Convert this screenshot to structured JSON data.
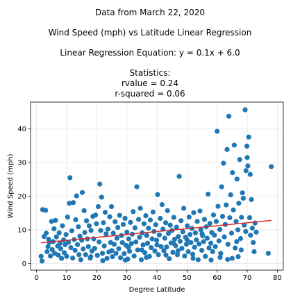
{
  "chart_data": {
    "type": "scatter",
    "title_lines": [
      "Data from March 22, 2020",
      "Wind Speed (mph) vs Latitude Linear Regression",
      "Linear Regression Equation: y = 0.1x + 6.0",
      "Statistics:",
      "rvalue = 0.24",
      "r-squared = 0.06"
    ],
    "xlabel": "Degree Latitude",
    "ylabel": "Wind Speed (mph)",
    "xlim": [
      -2,
      82
    ],
    "ylim": [
      -2,
      48
    ],
    "xticks": [
      0,
      10,
      20,
      30,
      40,
      50,
      60,
      70,
      80
    ],
    "yticks": [
      0,
      10,
      20,
      30,
      40
    ],
    "grid": true,
    "point_color": "#1f77b4",
    "line_color": "#d62728",
    "regression": {
      "slope": 0.087,
      "intercept": 6.0,
      "x_range": [
        1.5,
        78
      ]
    },
    "points": [
      [
        1.5,
        2.1
      ],
      [
        1.8,
        0.7
      ],
      [
        2.0,
        16.0
      ],
      [
        2.5,
        8.0
      ],
      [
        3.0,
        15.8
      ],
      [
        3.2,
        9.0
      ],
      [
        3.5,
        3.5
      ],
      [
        3.8,
        5.0
      ],
      [
        4.0,
        7.2
      ],
      [
        4.3,
        6.3
      ],
      [
        4.6,
        2.2
      ],
      [
        5.0,
        12.5
      ],
      [
        5.2,
        4.1
      ],
      [
        5.5,
        6.5
      ],
      [
        5.8,
        10.3
      ],
      [
        6.0,
        3.0
      ],
      [
        6.3,
        12.8
      ],
      [
        6.6,
        7.9
      ],
      [
        7.0,
        5.2
      ],
      [
        7.2,
        2.5
      ],
      [
        7.5,
        9.1
      ],
      [
        7.8,
        6.0
      ],
      [
        8.0,
        4.4
      ],
      [
        8.3,
        1.5
      ],
      [
        8.6,
        11.2
      ],
      [
        9.0,
        7.0
      ],
      [
        9.2,
        3.2
      ],
      [
        9.5,
        5.6
      ],
      [
        9.8,
        8.6
      ],
      [
        10.0,
        2.1
      ],
      [
        10.3,
        13.8
      ],
      [
        10.6,
        6.3
      ],
      [
        10.9,
        17.9
      ],
      [
        11.1,
        25.5
      ],
      [
        11.4,
        4.7
      ],
      [
        11.7,
        9.7
      ],
      [
        12.0,
        1.6
      ],
      [
        12.2,
        18.1
      ],
      [
        12.5,
        7.1
      ],
      [
        12.8,
        3.9
      ],
      [
        13.0,
        13.0
      ],
      [
        13.3,
        20.1
      ],
      [
        13.6,
        5.6
      ],
      [
        13.9,
        10.9
      ],
      [
        14.1,
        2.6
      ],
      [
        14.4,
        8.1
      ],
      [
        14.7,
        1.1
      ],
      [
        15.0,
        6.9
      ],
      [
        15.2,
        21.1
      ],
      [
        15.5,
        4.3
      ],
      [
        15.8,
        15.7
      ],
      [
        16.0,
        9.2
      ],
      [
        16.3,
        2.6
      ],
      [
        16.6,
        12.7
      ],
      [
        16.9,
        7.3
      ],
      [
        17.2,
        5.0
      ],
      [
        17.5,
        11.2
      ],
      [
        17.8,
        1.6
      ],
      [
        18.1,
        9.8
      ],
      [
        18.4,
        3.7
      ],
      [
        18.7,
        14.0
      ],
      [
        19.0,
        7.3
      ],
      [
        19.3,
        4.5
      ],
      [
        19.6,
        14.4
      ],
      [
        19.9,
        11.8
      ],
      [
        20.2,
        2.4
      ],
      [
        20.5,
        16.9
      ],
      [
        20.8,
        6.4
      ],
      [
        21.0,
        23.6
      ],
      [
        21.3,
        9.8
      ],
      [
        21.6,
        19.7
      ],
      [
        21.9,
        3.0
      ],
      [
        22.2,
        12.1
      ],
      [
        22.5,
        5.2
      ],
      [
        22.8,
        15.2
      ],
      [
        23.1,
        8.8
      ],
      [
        23.4,
        1.5
      ],
      [
        23.7,
        10.2
      ],
      [
        24.0,
        3.4
      ],
      [
        24.3,
        13.9
      ],
      [
        24.6,
        6.2
      ],
      [
        24.9,
        16.9
      ],
      [
        25.2,
        2.0
      ],
      [
        25.5,
        9.0
      ],
      [
        25.8,
        5.7
      ],
      [
        26.1,
        12.4
      ],
      [
        26.4,
        3.0
      ],
      [
        26.7,
        7.5
      ],
      [
        27.0,
        10.7
      ],
      [
        27.3,
        4.4
      ],
      [
        27.6,
        14.3
      ],
      [
        27.9,
        1.7
      ],
      [
        28.2,
        8.3
      ],
      [
        28.5,
        6.2
      ],
      [
        28.8,
        11.6
      ],
      [
        29.1,
        2.9
      ],
      [
        29.4,
        13.4
      ],
      [
        29.7,
        5.4
      ],
      [
        30.0,
        9.3
      ],
      [
        30.3,
        1.3
      ],
      [
        30.6,
        7.3
      ],
      [
        30.9,
        3.6
      ],
      [
        31.2,
        12.2
      ],
      [
        31.5,
        5.9
      ],
      [
        31.8,
        8.7
      ],
      [
        32.1,
        15.4
      ],
      [
        32.4,
        2.2
      ],
      [
        32.7,
        10.6
      ],
      [
        33.0,
        6.4
      ],
      [
        33.3,
        22.8
      ],
      [
        33.6,
        4.0
      ],
      [
        33.9,
        13.1
      ],
      [
        34.2,
        7.8
      ],
      [
        34.5,
        16.4
      ],
      [
        34.8,
        1.1
      ],
      [
        35.1,
        9.1
      ],
      [
        35.4,
        5.5
      ],
      [
        35.7,
        11.8
      ],
      [
        36.0,
        3.2
      ],
      [
        36.3,
        14.2
      ],
      [
        36.6,
        8.3
      ],
      [
        36.9,
        6.0
      ],
      [
        37.2,
        10.5
      ],
      [
        37.5,
        2.1
      ],
      [
        37.8,
        12.9
      ],
      [
        38.1,
        4.7
      ],
      [
        38.4,
        7.3
      ],
      [
        38.7,
        15.3
      ],
      [
        39.0,
        9.5
      ],
      [
        39.3,
        3.7
      ],
      [
        39.6,
        11.5
      ],
      [
        39.9,
        6.9
      ],
      [
        40.2,
        20.5
      ],
      [
        40.5,
        2.6
      ],
      [
        40.8,
        8.5
      ],
      [
        41.1,
        13.4
      ],
      [
        41.4,
        5.0
      ],
      [
        41.7,
        17.5
      ],
      [
        42.0,
        10.2
      ],
      [
        42.3,
        3.8
      ],
      [
        42.6,
        7.5
      ],
      [
        42.9,
        12.1
      ],
      [
        43.2,
        4.9
      ],
      [
        43.5,
        15.7
      ],
      [
        43.8,
        8.9
      ],
      [
        44.1,
        1.4
      ],
      [
        44.4,
        11.4
      ],
      [
        44.7,
        6.1
      ],
      [
        45.0,
        9.8
      ],
      [
        45.3,
        3.3
      ],
      [
        45.6,
        13.7
      ],
      [
        45.9,
        7.2
      ],
      [
        46.2,
        5.3
      ],
      [
        46.5,
        10.8
      ],
      [
        46.8,
        2.6
      ],
      [
        47.1,
        8.0
      ],
      [
        47.4,
        25.9
      ],
      [
        47.7,
        6.6
      ],
      [
        48.0,
        12.7
      ],
      [
        48.3,
        4.5
      ],
      [
        48.6,
        9.4
      ],
      [
        48.9,
        16.4
      ],
      [
        49.2,
        2.2
      ],
      [
        49.5,
        7.8
      ],
      [
        49.8,
        5.7
      ],
      [
        50.1,
        11.2
      ],
      [
        50.4,
        3.5
      ],
      [
        50.7,
        13.8
      ],
      [
        51.0,
        8.6
      ],
      [
        51.3,
        6.2
      ],
      [
        51.6,
        10.4
      ],
      [
        51.9,
        2.7
      ],
      [
        52.2,
        15.1
      ],
      [
        52.5,
        4.8
      ],
      [
        52.8,
        9.1
      ],
      [
        53.1,
        7.0
      ],
      [
        53.4,
        12.5
      ],
      [
        53.7,
        1.1
      ],
      [
        54.0,
        5.8
      ],
      [
        54.3,
        15.6
      ],
      [
        54.6,
        10.0
      ],
      [
        54.9,
        3.9
      ],
      [
        55.2,
        8.2
      ],
      [
        55.5,
        6.5
      ],
      [
        55.8,
        13.1
      ],
      [
        56.1,
        2.1
      ],
      [
        56.4,
        10.9
      ],
      [
        56.7,
        7.5
      ],
      [
        57.0,
        20.6
      ],
      [
        57.3,
        4.6
      ],
      [
        57.6,
        11.9
      ],
      [
        57.9,
        6.0
      ],
      [
        58.2,
        9.2
      ],
      [
        58.5,
        3.5
      ],
      [
        58.8,
        14.4
      ],
      [
        59.1,
        8.4
      ],
      [
        59.4,
        5.0
      ],
      [
        59.7,
        12.5
      ],
      [
        60.0,
        39.3
      ],
      [
        60.3,
        17.0
      ],
      [
        60.6,
        6.7
      ],
      [
        60.9,
        10.1
      ],
      [
        61.2,
        3.0
      ],
      [
        61.5,
        22.8
      ],
      [
        61.8,
        14.0
      ],
      [
        62.1,
        29.8
      ],
      [
        62.4,
        7.9
      ],
      [
        62.7,
        11.6
      ],
      [
        63.0,
        17.4
      ],
      [
        63.3,
        33.9
      ],
      [
        63.6,
        5.7
      ],
      [
        63.9,
        43.8
      ],
      [
        64.2,
        13.6
      ],
      [
        64.5,
        20.4
      ],
      [
        64.8,
        9.0
      ],
      [
        65.1,
        27.0
      ],
      [
        65.4,
        15.9
      ],
      [
        65.7,
        35.2
      ],
      [
        66.0,
        4.6
      ],
      [
        66.3,
        12.5
      ],
      [
        66.6,
        25.1
      ],
      [
        66.9,
        10.0
      ],
      [
        67.2,
        17.9
      ],
      [
        67.5,
        30.9
      ],
      [
        67.8,
        7.4
      ],
      [
        68.1,
        13.7
      ],
      [
        68.4,
        21.0
      ],
      [
        68.7,
        19.4
      ],
      [
        69.0,
        11.4
      ],
      [
        69.3,
        45.7
      ],
      [
        69.6,
        27.6
      ],
      [
        69.9,
        34.9
      ],
      [
        70.2,
        29.0
      ],
      [
        70.5,
        37.6
      ],
      [
        70.8,
        13.6
      ],
      [
        71.1,
        8.4
      ],
      [
        71.4,
        19.0
      ],
      [
        71.7,
        10.5
      ],
      [
        72.0,
        6.2
      ],
      [
        72.3,
        3.5
      ],
      [
        72.6,
        12.0
      ],
      [
        73.0,
        9.3
      ],
      [
        77.0,
        3.0
      ],
      [
        78.0,
        28.8
      ],
      [
        63.5,
        1.2
      ],
      [
        65.0,
        1.5
      ],
      [
        67.0,
        2.0
      ],
      [
        68.0,
        4.0
      ],
      [
        66.5,
        6.5
      ],
      [
        69.5,
        9.5
      ],
      [
        71.0,
        26.5
      ],
      [
        70.0,
        31.5
      ],
      [
        22.0,
        0.8
      ],
      [
        29.5,
        1.0
      ],
      [
        36.5,
        1.8
      ],
      [
        43.0,
        2.5
      ],
      [
        52.0,
        1.5
      ],
      [
        58.0,
        1.0
      ],
      [
        61.0,
        1.8
      ],
      [
        35.0,
        4.0
      ],
      [
        40.0,
        5.5
      ],
      [
        45.5,
        6.0
      ],
      [
        50.0,
        7.0
      ],
      [
        55.0,
        8.8
      ],
      [
        25.0,
        3.8
      ],
      [
        18.0,
        2.0
      ],
      [
        30.5,
        4.8
      ],
      [
        47.0,
        3.8
      ]
    ]
  }
}
